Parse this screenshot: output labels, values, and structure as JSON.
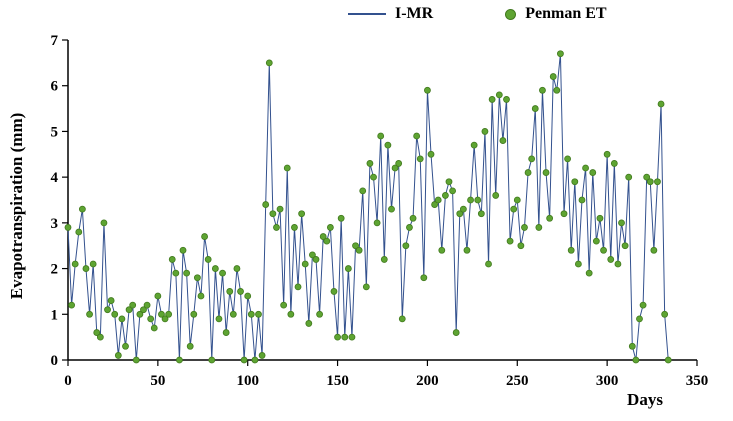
{
  "figure": {
    "y_axis_label": "Evapotranspiration (mm)",
    "x_axis_label": "Days"
  },
  "legend": [
    {
      "label": "I-MR",
      "type": "line",
      "color": "#33518e"
    },
    {
      "label": "Penman ET",
      "type": "dot",
      "color": "#5ea432"
    }
  ],
  "chart_data": {
    "type": "line",
    "title": "",
    "xlabel": "Days",
    "ylabel": "Evapotranspiration (mm)",
    "xlim": [
      0,
      350
    ],
    "ylim": [
      0,
      7
    ],
    "x_ticks": [
      0,
      50,
      100,
      150,
      200,
      250,
      300,
      350
    ],
    "y_ticks": [
      0,
      1,
      2,
      3,
      4,
      5,
      6,
      7
    ],
    "grid": false,
    "legend_position": "top-center",
    "series": [
      {
        "name": "I-MR",
        "style": "line",
        "color": "#33518e"
      },
      {
        "name": "Penman ET",
        "style": "scatter",
        "color": "#5ea432",
        "edge_color": "#41791e"
      }
    ],
    "x": [
      0,
      2,
      4,
      6,
      8,
      10,
      12,
      14,
      16,
      18,
      20,
      22,
      24,
      26,
      28,
      30,
      32,
      34,
      36,
      38,
      40,
      42,
      44,
      46,
      48,
      50,
      52,
      54,
      56,
      58,
      60,
      62,
      64,
      66,
      68,
      70,
      72,
      74,
      76,
      78,
      80,
      82,
      84,
      86,
      88,
      90,
      92,
      94,
      96,
      98,
      100,
      102,
      104,
      106,
      108,
      110,
      112,
      114,
      116,
      118,
      120,
      122,
      124,
      126,
      128,
      130,
      132,
      134,
      136,
      138,
      140,
      142,
      144,
      146,
      148,
      150,
      152,
      154,
      156,
      158,
      160,
      162,
      164,
      166,
      168,
      170,
      172,
      174,
      176,
      178,
      180,
      182,
      184,
      186,
      188,
      190,
      192,
      194,
      196,
      198,
      200,
      202,
      204,
      206,
      208,
      210,
      212,
      214,
      216,
      218,
      220,
      222,
      224,
      226,
      228,
      230,
      232,
      234,
      236,
      238,
      240,
      242,
      244,
      246,
      248,
      250,
      252,
      254,
      256,
      258,
      260,
      262,
      264,
      266,
      268,
      270,
      272,
      274,
      276,
      278,
      280,
      282,
      284,
      286,
      288,
      290,
      292,
      294,
      296,
      298,
      300,
      302,
      304,
      306,
      308,
      310,
      312,
      314,
      316,
      318,
      320,
      322,
      324,
      326,
      328,
      330,
      332,
      334
    ],
    "y": [
      2.9,
      1.2,
      2.1,
      2.8,
      3.3,
      2.0,
      1.0,
      2.1,
      0.6,
      0.5,
      3.0,
      1.1,
      1.3,
      1.0,
      0.1,
      0.9,
      0.3,
      1.1,
      1.2,
      0.0,
      1.0,
      1.1,
      1.2,
      0.9,
      0.7,
      1.4,
      1.0,
      0.9,
      1.0,
      2.2,
      1.9,
      0.0,
      2.4,
      1.9,
      0.3,
      1.0,
      1.8,
      1.4,
      2.7,
      2.2,
      0.0,
      2.0,
      0.9,
      1.9,
      0.6,
      1.5,
      1.0,
      2.0,
      1.5,
      0.0,
      1.4,
      1.0,
      0.0,
      1.0,
      0.1,
      3.4,
      6.5,
      3.2,
      2.9,
      3.3,
      1.2,
      4.2,
      1.0,
      2.9,
      1.6,
      3.2,
      2.1,
      0.8,
      2.3,
      2.2,
      1.0,
      2.7,
      2.6,
      2.9,
      1.5,
      0.5,
      3.1,
      0.5,
      2.0,
      0.5,
      2.5,
      2.4,
      3.7,
      1.6,
      4.3,
      4.0,
      3.0,
      4.9,
      2.2,
      4.7,
      3.3,
      4.2,
      4.3,
      0.9,
      2.5,
      2.9,
      3.1,
      4.9,
      4.4,
      1.8,
      5.9,
      4.5,
      3.4,
      3.5,
      2.4,
      3.6,
      3.9,
      3.7,
      0.6,
      3.2,
      3.3,
      2.4,
      3.5,
      4.7,
      3.5,
      3.2,
      5.0,
      2.1,
      5.7,
      3.6,
      5.8,
      4.8,
      5.7,
      2.6,
      3.3,
      3.5,
      2.5,
      2.9,
      4.1,
      4.4,
      5.5,
      2.9,
      5.9,
      4.1,
      3.1,
      6.2,
      5.9,
      6.7,
      3.2,
      4.4,
      2.4,
      3.9,
      2.1,
      3.5,
      4.2,
      1.9,
      4.1,
      2.6,
      3.1,
      2.4,
      4.5,
      2.2,
      4.3,
      2.1,
      3.0,
      2.5,
      4.0,
      0.3,
      0.0,
      0.9,
      1.2,
      4.0,
      3.9,
      2.4,
      3.9,
      5.6,
      1.0,
      0.0
    ]
  }
}
